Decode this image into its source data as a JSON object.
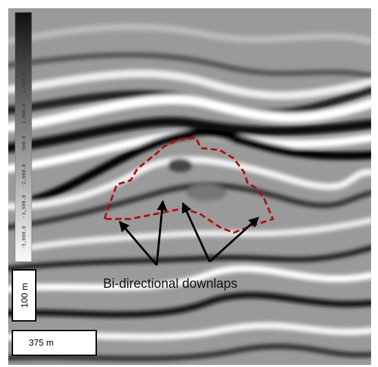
{
  "colorbar": {
    "labels": [
      "4,000.0",
      "2,500.0",
      "1,000.0",
      "-500.0",
      "-2,000.0",
      "-3,500.0",
      "-5,000.0"
    ]
  },
  "annotation": "Bi-directional downlaps",
  "scale_bars": {
    "vertical": "100 m",
    "horizontal": "375 m"
  }
}
